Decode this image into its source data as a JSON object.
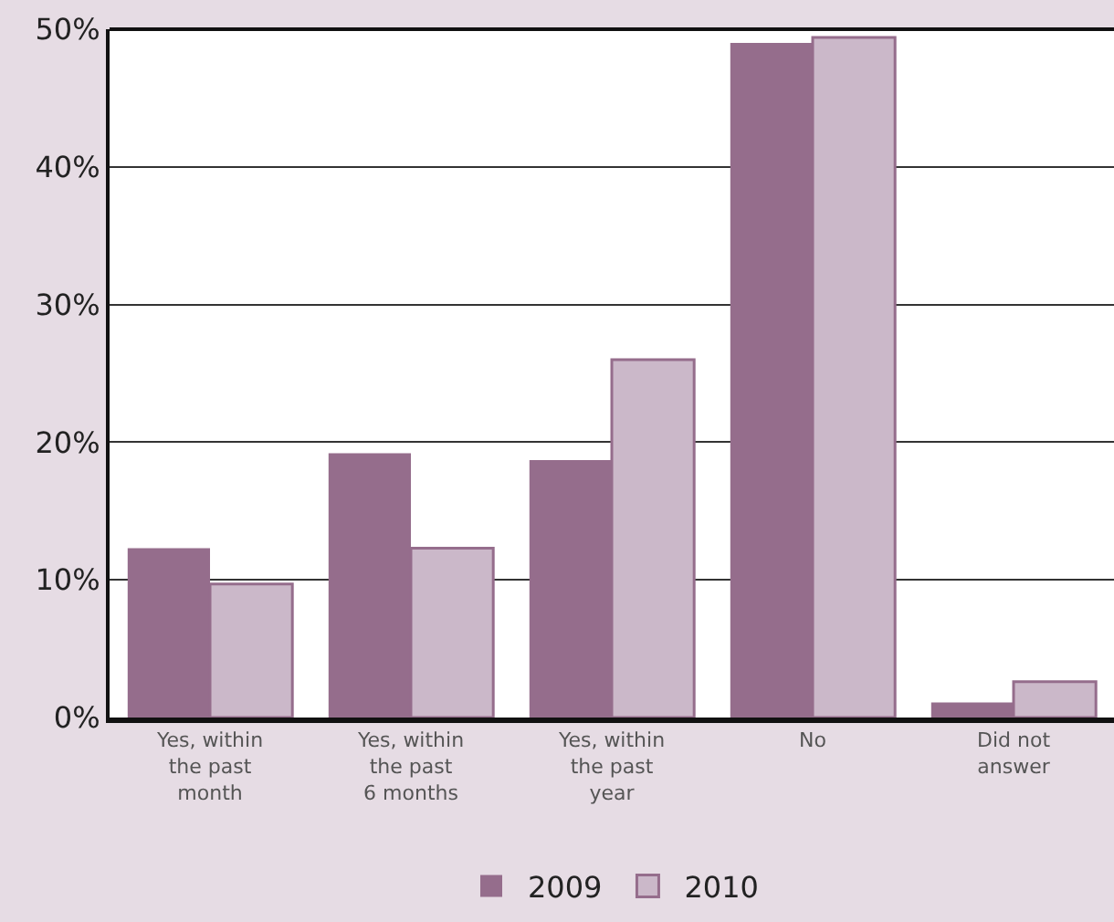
{
  "chart_data": {
    "type": "bar",
    "categories": [
      "Yes, within\nthe past\nmonth",
      "Yes, within\nthe past\n6 months",
      "Yes, within\nthe past\nyear",
      "No",
      "Did not\nanswer"
    ],
    "series": [
      {
        "name": "2009",
        "color": "#956d8c",
        "values": [
          12.3,
          19.2,
          18.7,
          49.0,
          1.1
        ]
      },
      {
        "name": "2010",
        "color": "#cbb8c9",
        "values": [
          9.7,
          12.3,
          26.0,
          49.4,
          2.6
        ]
      }
    ],
    "ylim": [
      0,
      50
    ],
    "yticks": [
      {
        "value": 0,
        "label": "0%"
      },
      {
        "value": 10,
        "label": "10%"
      },
      {
        "value": 20,
        "label": "20%"
      },
      {
        "value": 30,
        "label": "30%"
      },
      {
        "value": 40,
        "label": "40%"
      },
      {
        "value": 50,
        "label": "50%"
      }
    ],
    "grid": "y",
    "legend": "bottom"
  }
}
